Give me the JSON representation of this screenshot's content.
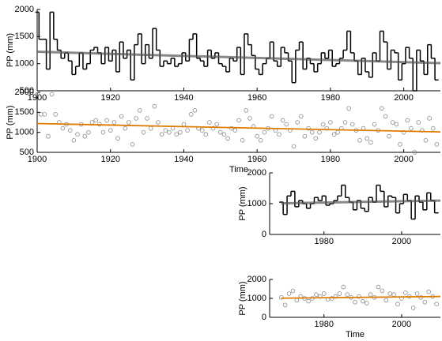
{
  "chart_data": [
    {
      "type": "step",
      "ylabel": "PP (mm)",
      "x": [
        1900,
        1901,
        1902,
        1903,
        1904,
        1905,
        1906,
        1907,
        1908,
        1909,
        1910,
        1911,
        1912,
        1913,
        1914,
        1915,
        1916,
        1917,
        1918,
        1919,
        1920,
        1921,
        1922,
        1923,
        1924,
        1925,
        1926,
        1927,
        1928,
        1929,
        1930,
        1931,
        1932,
        1933,
        1934,
        1935,
        1936,
        1937,
        1938,
        1939,
        1940,
        1941,
        1942,
        1943,
        1944,
        1945,
        1946,
        1947,
        1948,
        1949,
        1950,
        1951,
        1952,
        1953,
        1954,
        1955,
        1956,
        1957,
        1958,
        1959,
        1960,
        1961,
        1962,
        1963,
        1964,
        1965,
        1966,
        1967,
        1968,
        1969,
        1970,
        1971,
        1972,
        1973,
        1974,
        1975,
        1976,
        1977,
        1978,
        1979,
        1980,
        1981,
        1982,
        1983,
        1984,
        1985,
        1986,
        1987,
        1988,
        1989,
        1990,
        1991,
        1992,
        1993,
        1994,
        1995,
        1996,
        1997,
        1998,
        1999,
        2000,
        2001,
        2002,
        2003,
        2004,
        2005,
        2006,
        2007,
        2008,
        2009
      ],
      "values": [
        1950,
        1450,
        1450,
        900,
        1950,
        1450,
        1250,
        1100,
        1200,
        1050,
        800,
        950,
        1200,
        900,
        1000,
        1250,
        1300,
        1200,
        1000,
        1300,
        1050,
        1250,
        850,
        1400,
        1100,
        1250,
        700,
        1350,
        1550,
        1000,
        1350,
        1100,
        1650,
        1250,
        950,
        1050,
        1000,
        1100,
        950,
        1000,
        1200,
        1050,
        1450,
        1550,
        1100,
        1050,
        950,
        1250,
        1100,
        1200,
        1000,
        950,
        850,
        1100,
        1050,
        1300,
        800,
        1550,
        1350,
        1150,
        900,
        800,
        1000,
        1100,
        1400,
        1050,
        950,
        1300,
        1200,
        1050,
        650,
        1250,
        1400,
        900,
        1100,
        1000,
        850,
        1000,
        1200,
        1100,
        1250,
        950,
        1000,
        1100,
        1250,
        1600,
        1200,
        1050,
        800,
        1100,
        850,
        750,
        1200,
        1050,
        1600,
        1400,
        900,
        1250,
        1200,
        700,
        1000,
        1300,
        1100,
        500,
        1250,
        1050,
        800,
        1350,
        1100,
        700
      ],
      "color": "#000000",
      "trend": {
        "x": [
          1900,
          2010
        ],
        "values": [
          1220,
          1010
        ],
        "color": "#555555"
      },
      "xlim": [
        1900,
        2010
      ],
      "xticks": [
        1900,
        1920,
        1940,
        1960,
        1980,
        2000
      ],
      "ylim": [
        500,
        2000
      ],
      "yticks": [
        500,
        1000,
        1500,
        2000
      ]
    },
    {
      "type": "scatter",
      "ylabel": "PP (mm)",
      "xlabel": "Time",
      "x": [
        1900,
        1901,
        1902,
        1903,
        1904,
        1905,
        1906,
        1907,
        1908,
        1909,
        1910,
        1911,
        1912,
        1913,
        1914,
        1915,
        1916,
        1917,
        1918,
        1919,
        1920,
        1921,
        1922,
        1923,
        1924,
        1925,
        1926,
        1927,
        1928,
        1929,
        1930,
        1931,
        1932,
        1933,
        1934,
        1935,
        1936,
        1937,
        1938,
        1939,
        1940,
        1941,
        1942,
        1943,
        1944,
        1945,
        1946,
        1947,
        1948,
        1949,
        1950,
        1951,
        1952,
        1953,
        1954,
        1955,
        1956,
        1957,
        1958,
        1959,
        1960,
        1961,
        1962,
        1963,
        1964,
        1965,
        1966,
        1967,
        1968,
        1969,
        1970,
        1971,
        1972,
        1973,
        1974,
        1975,
        1976,
        1977,
        1978,
        1979,
        1980,
        1981,
        1982,
        1983,
        1984,
        1985,
        1986,
        1987,
        1988,
        1989,
        1990,
        1991,
        1992,
        1993,
        1994,
        1995,
        1996,
        1997,
        1998,
        1999,
        2000,
        2001,
        2002,
        2003,
        2004,
        2005,
        2006,
        2007,
        2008,
        2009
      ],
      "values": [
        1950,
        1450,
        1450,
        900,
        1950,
        1450,
        1250,
        1100,
        1200,
        1050,
        800,
        950,
        1200,
        900,
        1000,
        1250,
        1300,
        1200,
        1000,
        1300,
        1050,
        1250,
        850,
        1400,
        1100,
        1250,
        700,
        1350,
        1550,
        1000,
        1350,
        1100,
        1650,
        1250,
        950,
        1050,
        1000,
        1100,
        950,
        1000,
        1200,
        1050,
        1450,
        1550,
        1100,
        1050,
        950,
        1250,
        1100,
        1200,
        1000,
        950,
        850,
        1100,
        1050,
        1300,
        800,
        1550,
        1350,
        1150,
        900,
        800,
        1000,
        1100,
        1400,
        1050,
        950,
        1300,
        1200,
        1050,
        650,
        1250,
        1400,
        900,
        1100,
        1000,
        850,
        1000,
        1200,
        1100,
        1250,
        950,
        1000,
        1100,
        1250,
        1600,
        1200,
        1050,
        800,
        1100,
        850,
        750,
        1200,
        1050,
        1600,
        1400,
        900,
        1250,
        1200,
        700,
        1000,
        1300,
        1100,
        500,
        1250,
        1050,
        800,
        1350,
        1100,
        700
      ],
      "color": "#888888",
      "trend": {
        "x": [
          1900,
          2010
        ],
        "values": [
          1220,
          1010
        ],
        "color": "#e07b00"
      },
      "xlim": [
        1900,
        2010
      ],
      "xticks": [
        1900,
        1920,
        1940,
        1960,
        1980,
        2000
      ],
      "ylim": [
        500,
        2000
      ],
      "yticks": [
        500,
        1000,
        1500,
        2000
      ]
    },
    {
      "type": "step",
      "ylabel": "PP (mm)",
      "x": [
        1969,
        1970,
        1971,
        1972,
        1973,
        1974,
        1975,
        1976,
        1977,
        1978,
        1979,
        1980,
        1981,
        1982,
        1983,
        1984,
        1985,
        1986,
        1987,
        1988,
        1989,
        1990,
        1991,
        1992,
        1993,
        1994,
        1995,
        1996,
        1997,
        1998,
        1999,
        2000,
        2001,
        2002,
        2003,
        2004,
        2005,
        2006,
        2007,
        2008,
        2009
      ],
      "values": [
        1050,
        650,
        1250,
        1400,
        900,
        1100,
        1000,
        850,
        1000,
        1200,
        1100,
        1250,
        950,
        1000,
        1100,
        1250,
        1600,
        1200,
        1050,
        800,
        1100,
        850,
        750,
        1200,
        1050,
        1600,
        1400,
        900,
        1250,
        1200,
        700,
        1000,
        1300,
        1100,
        500,
        1250,
        1050,
        800,
        1350,
        1100,
        700
      ],
      "color": "#000000",
      "trend": {
        "x": [
          1969,
          2010
        ],
        "values": [
          1010,
          1100
        ],
        "color": "#555555"
      },
      "xlim": [
        1966,
        2010
      ],
      "xticks": [
        1980,
        2000
      ],
      "ylim": [
        0,
        2000
      ],
      "yticks": [
        0,
        1000,
        2000
      ]
    },
    {
      "type": "scatter",
      "ylabel": "PP (mm)",
      "xlabel": "Time",
      "x": [
        1969,
        1970,
        1971,
        1972,
        1973,
        1974,
        1975,
        1976,
        1977,
        1978,
        1979,
        1980,
        1981,
        1982,
        1983,
        1984,
        1985,
        1986,
        1987,
        1988,
        1989,
        1990,
        1991,
        1992,
        1993,
        1994,
        1995,
        1996,
        1997,
        1998,
        1999,
        2000,
        2001,
        2002,
        2003,
        2004,
        2005,
        2006,
        2007,
        2008,
        2009
      ],
      "values": [
        1050,
        650,
        1250,
        1400,
        900,
        1100,
        1000,
        850,
        1000,
        1200,
        1100,
        1250,
        950,
        1000,
        1100,
        1250,
        1600,
        1200,
        1050,
        800,
        1100,
        850,
        750,
        1200,
        1050,
        1600,
        1400,
        900,
        1250,
        1200,
        700,
        1000,
        1300,
        1100,
        500,
        1250,
        1050,
        800,
        1350,
        1100,
        700
      ],
      "color": "#888888",
      "trend": {
        "x": [
          1969,
          2010
        ],
        "values": [
          1010,
          1100
        ],
        "color": "#e07b00"
      },
      "xlim": [
        1966,
        2010
      ],
      "xticks": [
        1980,
        2000
      ],
      "ylim": [
        0,
        2000
      ],
      "yticks": [
        0,
        1000,
        2000
      ]
    }
  ]
}
